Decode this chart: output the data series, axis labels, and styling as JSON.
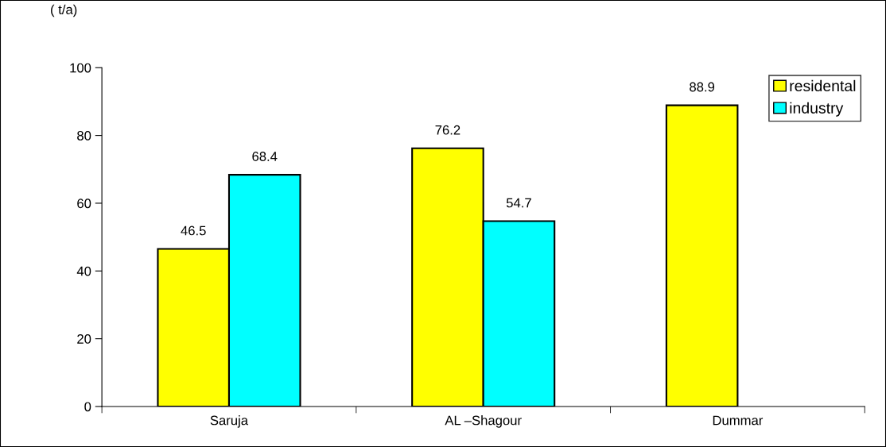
{
  "chart_data": {
    "type": "bar",
    "ylabel": "( t/a)",
    "categories": [
      "Saruja",
      "AL –Shagour",
      "Dummar"
    ],
    "series": [
      {
        "name": "residental",
        "color": "#ffff00",
        "values": [
          46.5,
          76.2,
          88.9
        ]
      },
      {
        "name": "industry",
        "color": "#00ffff",
        "values": [
          68.4,
          54.7,
          null
        ]
      }
    ],
    "ylim": [
      0,
      100
    ],
    "yticks": [
      0,
      20,
      40,
      60,
      80,
      100
    ],
    "grid": false,
    "legend": "top right",
    "data_labels": true
  }
}
